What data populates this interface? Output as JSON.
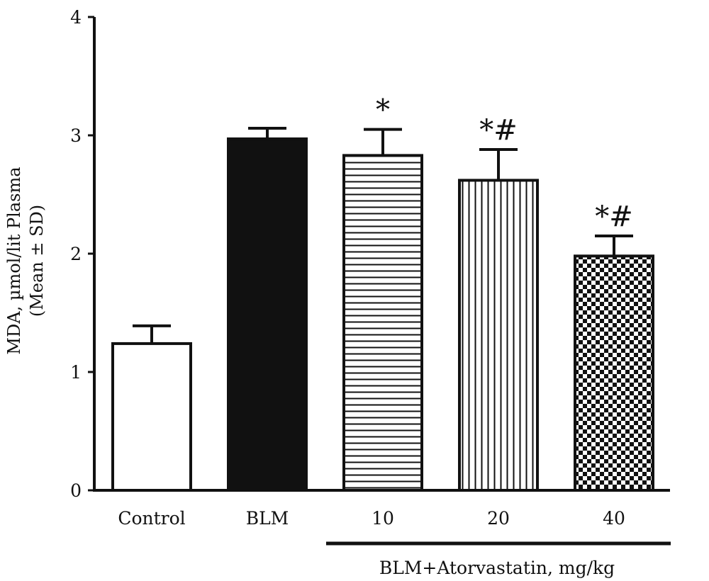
{
  "chart_data": {
    "type": "bar",
    "ylabel": "MDA, µmol/lit Plasma",
    "ylabel2": "(Mean ± SD)",
    "xlabel": "",
    "ylim": [
      0,
      4
    ],
    "yticks": [
      "0",
      "1",
      "2",
      "3",
      "4"
    ],
    "ytick_values": [
      0,
      1,
      2,
      3,
      4
    ],
    "categories": [
      "Control",
      "BLM",
      "10",
      "20",
      "40"
    ],
    "values": [
      1.24,
      2.97,
      2.83,
      2.62,
      1.98
    ],
    "errors": [
      0.15,
      0.09,
      0.22,
      0.26,
      0.17
    ],
    "patterns": [
      "white",
      "solid",
      "horizontal",
      "vertical",
      "checker"
    ],
    "annotations": [
      "",
      "",
      "*",
      "*#",
      "*#"
    ],
    "group_label": "BLM+Atorvastatin, mg/kg",
    "group_span": [
      2,
      4
    ],
    "colors": {
      "ink": "#111111",
      "fill_solid": "#111111",
      "background": "#ffffff"
    }
  }
}
